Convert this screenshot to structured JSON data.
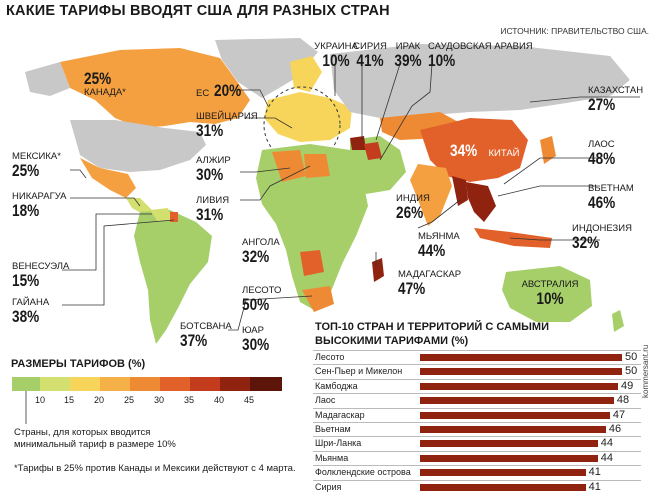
{
  "title": "КАКИЕ ТАРИФЫ ВВОДЯТ США ДЛЯ РАЗНЫХ СТРАН",
  "source": "ИСТОЧНИК: ПРАВИТЕЛЬСТВО США.",
  "labels": {
    "canada": {
      "value": "25%",
      "name": "КАНАДА*"
    },
    "eu": {
      "name": "ЕС",
      "value": "20%"
    },
    "ukraine": {
      "name": "УКРАИНА",
      "value": "10%"
    },
    "syria": {
      "name": "СИРИЯ",
      "value": "41%"
    },
    "iraq": {
      "name": "ИРАК",
      "value": "39%"
    },
    "saudi": {
      "name": "САУДОВСКАЯ АРАВИЯ",
      "value": "10%"
    },
    "kazakhstan": {
      "name": "КАЗАХСТАН",
      "value": "27%"
    },
    "switzerland": {
      "name": "ШВЕЙЦАРИЯ",
      "value": "31%"
    },
    "mexico": {
      "name": "МЕКСИКА*",
      "value": "25%"
    },
    "algeria": {
      "name": "АЛЖИР",
      "value": "30%"
    },
    "china": {
      "value": "34%",
      "name": "КИТАЙ"
    },
    "laos": {
      "name": "ЛАОС",
      "value": "48%"
    },
    "nicaragua": {
      "name": "НИКАРАГУА",
      "value": "18%"
    },
    "libya": {
      "name": "ЛИВИЯ",
      "value": "31%"
    },
    "india": {
      "name": "ИНДИЯ",
      "value": "26%"
    },
    "vietnam": {
      "name": "ВЬЕТНАМ",
      "value": "46%"
    },
    "myanmar": {
      "name": "МЬЯНМА",
      "value": "44%"
    },
    "indonesia": {
      "name": "ИНДОНЕЗИЯ",
      "value": "32%"
    },
    "angola": {
      "name": "АНГОЛА",
      "value": "32%"
    },
    "venezuela": {
      "name": "ВЕНЕСУЭЛА",
      "value": "15%"
    },
    "madagascar": {
      "name": "МАДАГАСКАР",
      "value": "47%"
    },
    "australia": {
      "name": "АВСТРАЛИЯ",
      "value": "10%"
    },
    "guyana": {
      "name": "ГАЙАНА",
      "value": "38%"
    },
    "lesotho": {
      "name": "ЛЕСОТО",
      "value": "50%"
    },
    "botswana": {
      "name": "БОТСВАНА",
      "value": "37%"
    },
    "sar": {
      "name": "ЮАР",
      "value": "30%"
    }
  },
  "legend": {
    "title": "РАЗМЕРЫ ТАРИФОВ (%)",
    "ticks": [
      "10",
      "15",
      "20",
      "25",
      "30",
      "35",
      "40",
      "45"
    ],
    "colors": [
      "#a6cf6a",
      "#d3df6e",
      "#f7d55a",
      "#f5b047",
      "#ef8a34",
      "#e2612a",
      "#c23c1d",
      "#8f2310",
      "#5c1508"
    ],
    "note": "Страны, для которых вводится минимальный тариф в размере 10%"
  },
  "footnote": "*Тарифы в 25% против Канады и Мексики действуют с 4 марта.",
  "credit": "kommersant.ru",
  "chart_data": {
    "type": "bar",
    "title": "ТОП-10 СТРАН И ТЕРРИТОРИЙ С САМЫМИ ВЫСОКИМИ ТАРИФАМИ (%)",
    "categories": [
      "Лесото",
      "Сен-Пьер и Микелон",
      "Камбоджа",
      "Лаос",
      "Мадагаскар",
      "Вьетнам",
      "Шри-Ланка",
      "Мьянма",
      "Фолклендские острова",
      "Сирия"
    ],
    "values": [
      50,
      50,
      49,
      48,
      47,
      46,
      44,
      44,
      41,
      41
    ],
    "xlim": [
      0,
      50
    ]
  }
}
